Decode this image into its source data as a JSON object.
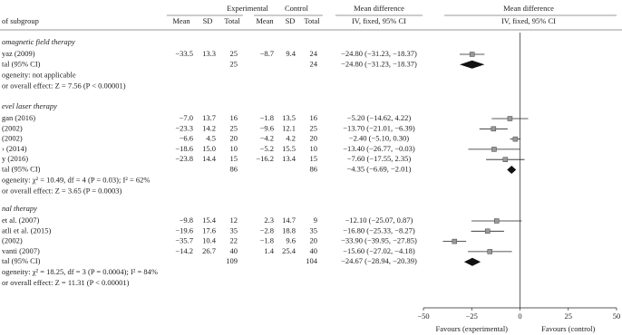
{
  "header": {
    "study": "of subgroup",
    "experimental": "Experimental",
    "control": "Control",
    "md_col": "Mean difference",
    "md_col_sub": "IV, fixed, 95% CI",
    "plot_col": "Mean difference",
    "plot_col_sub": "IV, fixed, 95% CI",
    "mean": "Mean",
    "sd": "SD",
    "total": "Total"
  },
  "subgroups": [
    {
      "title": "omagnetic field therapy",
      "rows": [
        {
          "study": "yaz (2009)",
          "exp": [
            "−33.5",
            "13.3",
            "25"
          ],
          "ctrl": [
            "−8.7",
            "9.4",
            "24"
          ],
          "md": -24.8,
          "ci": [
            -31.23,
            -18.37
          ],
          "md_label": "−24.80 (−31.23, −18.37)"
        }
      ],
      "total": {
        "label": "tal (95% CI)",
        "exp_total": "25",
        "ctrl_total": "24",
        "md": -24.8,
        "ci": [
          -31.23,
          -18.37
        ],
        "md_label": "−24.80 (−31.23, −18.37)"
      },
      "heterogeneity": "ogeneity: not applicable",
      "overall": "or overall effect: Z = 7.56 (P < 0.00001)"
    },
    {
      "title": "evel laser therapy",
      "rows": [
        {
          "study": "gan (2016)",
          "exp": [
            "−7.0",
            "13.7",
            "16"
          ],
          "ctrl": [
            "−1.8",
            "13.5",
            "16"
          ],
          "md": -5.2,
          "ci": [
            -14.62,
            4.22
          ],
          "md_label": "−5.20 (−14.62, 4.22)"
        },
        {
          "study": "(2002)",
          "exp": [
            "−23.3",
            "14.2",
            "25"
          ],
          "ctrl": [
            "−9.6",
            "12.1",
            "25"
          ],
          "md": -13.7,
          "ci": [
            -21.01,
            -6.39
          ],
          "md_label": "−13.70 (−21.01, −6.39)"
        },
        {
          "study": "(2002)",
          "exp": [
            "−6.6",
            "4.5",
            "20"
          ],
          "ctrl": [
            "−4.2",
            "4.2",
            "20"
          ],
          "md": -2.4,
          "ci": [
            -5.1,
            0.3
          ],
          "md_label": "−2.40 (−5.10, 0.30)"
        },
        {
          "study": "› (2014)",
          "exp": [
            "−18.6",
            "15.0",
            "10"
          ],
          "ctrl": [
            "−5.2",
            "15.5",
            "10"
          ],
          "md": -13.4,
          "ci": [
            -26.77,
            -0.03
          ],
          "md_label": "−13.40 (−26.77, −0.03)"
        },
        {
          "study": "y (2016)",
          "exp": [
            "−23.8",
            "14.4",
            "15"
          ],
          "ctrl": [
            "−16.2",
            "13.4",
            "15"
          ],
          "md": -7.6,
          "ci": [
            -17.55,
            2.35
          ],
          "md_label": "−7.60 (−17.55, 2.35)"
        }
      ],
      "total": {
        "label": "tal (95% CI)",
        "exp_total": "86",
        "ctrl_total": "86",
        "md": -4.35,
        "ci": [
          -6.69,
          -2.01
        ],
        "md_label": "−4.35 (−6.69, −2.01)"
      },
      "heterogeneity": "ogeneity: χ² = 10.49, df = 4 (P = 0.03); I² = 62%",
      "overall": "or overall effect: Z = 3.65 (P = 0.0003)"
    },
    {
      "title": "nal therapy",
      "rows": [
        {
          "study": "et al. (2007)",
          "exp": [
            "−9.8",
            "15.4",
            "12"
          ],
          "ctrl": [
            "2.3",
            "14.7",
            "9"
          ],
          "md": -12.1,
          "ci": [
            -25.07,
            0.87
          ],
          "md_label": "−12.10 (−25.07, 0.87)"
        },
        {
          "study": "atli et al. (2015)",
          "exp": [
            "−19.6",
            "17.6",
            "35"
          ],
          "ctrl": [
            "−2.8",
            "18.8",
            "35"
          ],
          "md": -16.8,
          "ci": [
            -25.33,
            -8.27
          ],
          "md_label": "−16.80 (−25.33, −8.27)"
        },
        {
          "study": "(2002)",
          "exp": [
            "−35.7",
            "10.4",
            "22"
          ],
          "ctrl": [
            "−1.8",
            "9.6",
            "20"
          ],
          "md": -33.9,
          "ci": [
            -39.95,
            -27.85
          ],
          "md_label": "−33.90 (−39.95, −27.85)"
        },
        {
          "study": "vanti (2007)",
          "exp": [
            "−14.2",
            "26.7",
            "40"
          ],
          "ctrl": [
            "1.4",
            "25.4",
            "40"
          ],
          "md": -15.6,
          "ci": [
            -27.02,
            -4.18
          ],
          "md_label": "−15.60 (−27.02, −4.18)"
        }
      ],
      "total": {
        "label": "tal (95% CI)",
        "exp_total": "109",
        "ctrl_total": "104",
        "md": -24.67,
        "ci": [
          -28.94,
          -20.39
        ],
        "md_label": "−24.67 (−28.94, −20.39)"
      },
      "heterogeneity": "ogeneity: χ² = 18.25, df = 3 (P = 0.0004); I² = 84%",
      "overall": "or overall effect: Z = 11.31 (P < 0.00001)"
    }
  ],
  "axis": {
    "xlim": [
      -50,
      50
    ],
    "xticks": [
      {
        "value": -50,
        "label": "−50"
      },
      {
        "value": -25,
        "label": "−25"
      },
      0,
      25,
      50
    ],
    "left_label": "Favours (experimental)",
    "right_label": "Favours (control)"
  }
}
